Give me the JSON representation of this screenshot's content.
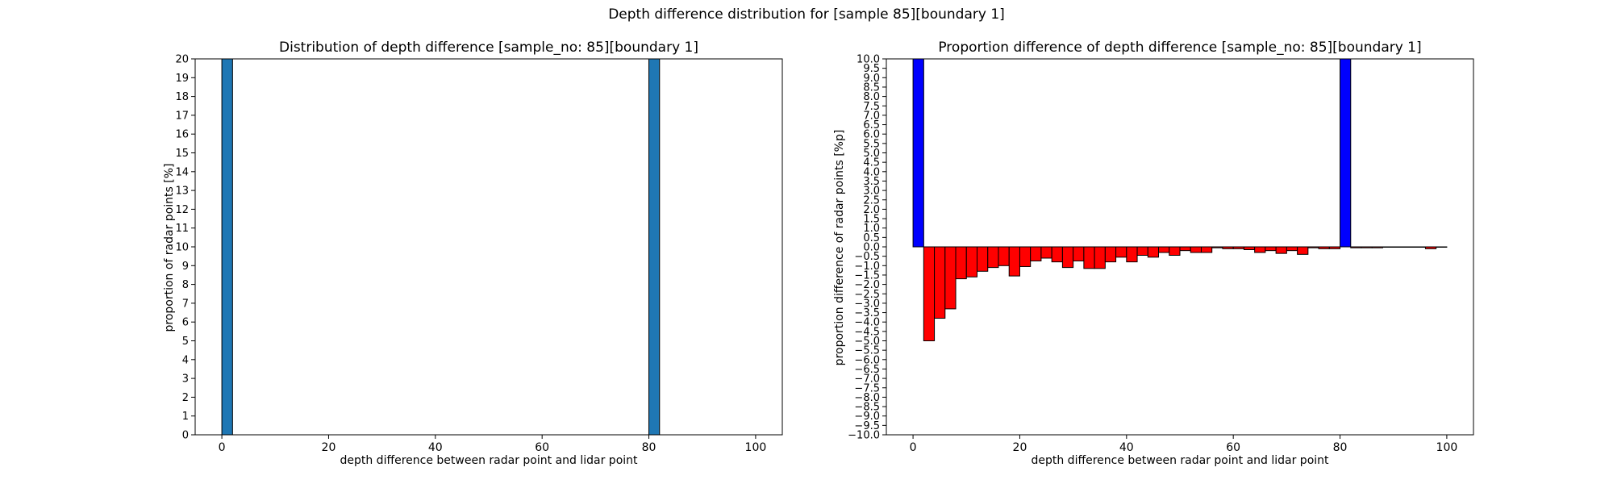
{
  "figure": {
    "suptitle": "Depth difference distribution for [sample 85][boundary 1]"
  },
  "chart_data": [
    {
      "type": "bar",
      "title": "Distribution of depth difference [sample_no: 85][boundary 1]",
      "xlabel": "depth difference between radar point and lidar point",
      "ylabel": "proportion of radar points [%]",
      "xlim": [
        -5,
        105
      ],
      "ylim": [
        0,
        20
      ],
      "xticks": [
        0,
        20,
        40,
        60,
        80,
        100
      ],
      "yticks": [
        0,
        1,
        2,
        3,
        4,
        5,
        6,
        7,
        8,
        9,
        10,
        11,
        12,
        13,
        14,
        15,
        16,
        17,
        18,
        19,
        20
      ],
      "bin_width": 2,
      "bars": [
        {
          "x": 0,
          "value": 20,
          "color": "#1f77b4"
        },
        {
          "x": 80,
          "value": 20,
          "color": "#1f77b4"
        }
      ]
    },
    {
      "type": "bar",
      "title": "Proportion difference of depth difference [sample_no: 85][boundary 1]",
      "xlabel": "depth difference between radar point and lidar point",
      "ylabel": "proportion difference of radar points [%p]",
      "xlim": [
        -5,
        105
      ],
      "ylim": [
        -10,
        10
      ],
      "xticks": [
        0,
        20,
        40,
        60,
        80,
        100
      ],
      "ytick_step": 0.5,
      "bin_width": 2,
      "positive_color": "#0000ff",
      "negative_color": "#ff0000",
      "bin_starts": [
        0,
        2,
        4,
        6,
        8,
        10,
        12,
        14,
        16,
        18,
        20,
        22,
        24,
        26,
        28,
        30,
        32,
        34,
        36,
        38,
        40,
        42,
        44,
        46,
        48,
        50,
        52,
        54,
        56,
        58,
        60,
        62,
        64,
        66,
        68,
        70,
        72,
        74,
        76,
        78,
        80,
        82,
        84,
        86,
        88,
        90,
        92,
        94,
        96,
        98
      ],
      "values": [
        10,
        -5.0,
        -3.8,
        -3.3,
        -1.7,
        -1.6,
        -1.3,
        -1.1,
        -1.0,
        -1.55,
        -1.05,
        -0.75,
        -0.6,
        -0.8,
        -1.1,
        -0.75,
        -1.15,
        -1.15,
        -0.8,
        -0.55,
        -0.8,
        -0.45,
        -0.55,
        -0.3,
        -0.45,
        -0.2,
        -0.3,
        -0.3,
        -0.05,
        -0.1,
        -0.1,
        -0.15,
        -0.3,
        -0.2,
        -0.35,
        -0.2,
        -0.4,
        -0.05,
        -0.1,
        -0.1,
        10,
        -0.05,
        -0.05,
        -0.05,
        -0.02,
        -0.02,
        -0.02,
        -0.02,
        -0.1,
        -0.02
      ]
    }
  ]
}
